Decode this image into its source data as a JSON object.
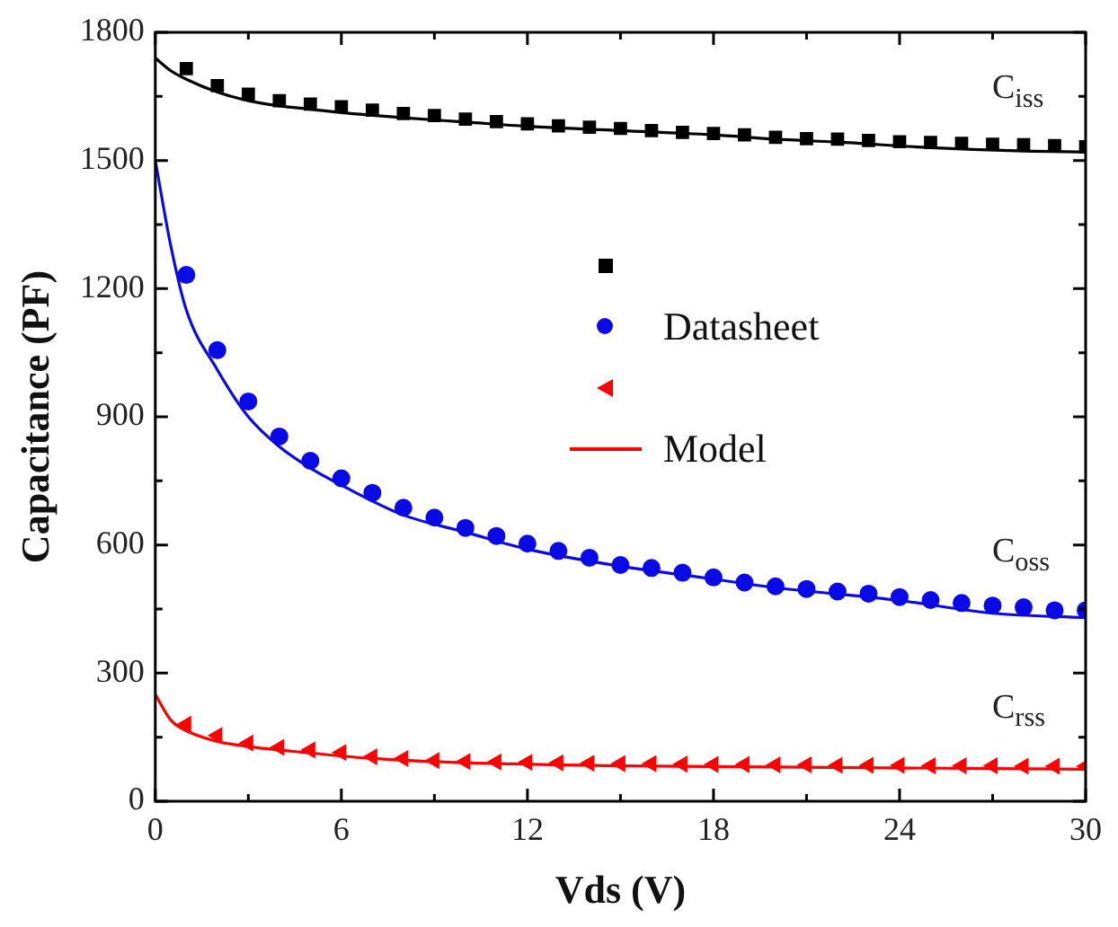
{
  "chart_data": {
    "type": "scatter",
    "xlabel": "Vds (V)",
    "ylabel": "Capacitance (PF)",
    "xlim": [
      0,
      30
    ],
    "ylim": [
      0,
      1800
    ],
    "xticks": [
      0,
      {
        "value": 3,
        "label": null
      },
      6,
      {
        "value": 9,
        "label": null
      },
      12,
      {
        "value": 15,
        "label": null
      },
      18,
      {
        "value": 21,
        "label": null
      },
      24,
      {
        "value": 27,
        "label": null
      },
      30
    ],
    "yticks": [
      0,
      {
        "value": 150,
        "label": null
      },
      300,
      {
        "value": 450,
        "label": null
      },
      600,
      {
        "value": 750,
        "label": null
      },
      900,
      {
        "value": 1050,
        "label": null
      },
      1200,
      {
        "value": 1350,
        "label": null
      },
      1500,
      {
        "value": 1650,
        "label": null
      },
      1800
    ],
    "grid": false,
    "legend": "center",
    "annotations": [
      "C$_{iss}$",
      "C$_{oss}$",
      "C$_{rss}$"
    ],
    "series": [
      {
        "type": "scatter",
        "marker": "square",
        "color": "#000000",
        "x": [
          1,
          2,
          3,
          4,
          5,
          6,
          7,
          8,
          9,
          10,
          11,
          12,
          13,
          14,
          15,
          16,
          17,
          18,
          19,
          20,
          21,
          22,
          23,
          24,
          25,
          26,
          27,
          28,
          29,
          30
        ],
        "values": [
          1715,
          1675,
          1655,
          1640,
          1632,
          1626,
          1618,
          1610,
          1605,
          1597,
          1591,
          1586,
          1581,
          1578,
          1575,
          1570,
          1566,
          1563,
          1560,
          1554,
          1551,
          1550,
          1547,
          1544,
          1542,
          1540,
          1538,
          1537,
          1535,
          1532
        ]
      },
      {
        "type": "scatter",
        "marker": "circle",
        "name": "Datasheet",
        "color": "#0a0ae6",
        "x": [
          1,
          2,
          3,
          4,
          5,
          6,
          7,
          8,
          9,
          10,
          11,
          12,
          13,
          14,
          15,
          16,
          17,
          18,
          19,
          20,
          21,
          22,
          23,
          24,
          25,
          26,
          27,
          28,
          29,
          30
        ],
        "values": [
          1232,
          1056,
          936,
          854,
          797,
          756,
          722,
          687,
          664,
          640,
          621,
          603,
          586,
          570,
          553,
          546,
          535,
          524,
          512,
          503,
          497,
          491,
          486,
          478,
          471,
          464,
          458,
          454,
          447,
          447
        ]
      },
      {
        "type": "scatter",
        "marker": "triangle",
        "color": "#ff0000",
        "x": [
          1,
          2,
          3,
          4,
          5,
          6,
          7,
          8,
          9,
          10,
          11,
          12,
          13,
          14,
          15,
          16,
          17,
          18,
          19,
          20,
          21,
          22,
          23,
          24,
          25,
          26,
          27,
          28,
          29,
          30
        ],
        "values": [
          180,
          154,
          136,
          126,
          120,
          114,
          104,
          100,
          95,
          93,
          92,
          91,
          90,
          89,
          88,
          88,
          87,
          86,
          86,
          85,
          85,
          84,
          84,
          84,
          83,
          83,
          83,
          82,
          82,
          82
        ]
      },
      {
        "type": "line",
        "marker": "none",
        "line_style": "solid",
        "color": "#000000",
        "x": [
          0,
          0.5,
          1,
          2,
          3,
          4,
          5,
          6,
          8,
          10,
          12,
          15,
          18,
          20,
          22,
          25,
          28,
          30
        ],
        "values": [
          1740,
          1710,
          1690,
          1660,
          1640,
          1628,
          1620,
          1612,
          1600,
          1590,
          1580,
          1570,
          1560,
          1550,
          1543,
          1530,
          1522,
          1520
        ]
      },
      {
        "type": "line",
        "marker": "none",
        "line_style": "solid",
        "color": "#0a0ae6",
        "x": [
          0,
          0.5,
          1,
          2,
          3,
          4,
          5,
          6,
          8,
          10,
          12,
          15,
          18,
          20,
          24,
          27,
          30
        ],
        "values": [
          1500,
          1300,
          1150,
          1010,
          900,
          830,
          780,
          740,
          670,
          630,
          590,
          550,
          520,
          500,
          470,
          440,
          430
        ]
      },
      {
        "type": "line",
        "marker": "none",
        "line_style": "solid",
        "name": "Model",
        "color": "#ff0000",
        "x": [
          0,
          0.5,
          1,
          2,
          3,
          5,
          7,
          10,
          15,
          20,
          30
        ],
        "values": [
          250,
          190,
          165,
          140,
          128,
          113,
          100,
          90,
          83,
          80,
          75
        ]
      }
    ]
  }
}
